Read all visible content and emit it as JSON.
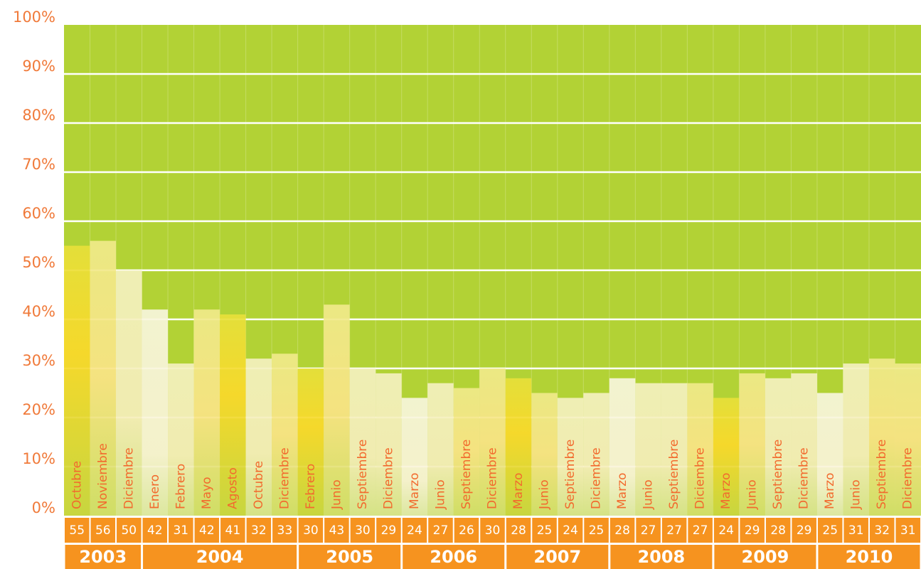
{
  "chart_data": {
    "type": "bar",
    "ylim": [
      0,
      100
    ],
    "yticks": [
      {
        "value": 0,
        "label": "0%"
      },
      {
        "value": 10,
        "label": "10%"
      },
      {
        "value": 20,
        "label": "20%"
      },
      {
        "value": 30,
        "label": "30%"
      },
      {
        "value": 40,
        "label": "40%"
      },
      {
        "value": 50,
        "label": "50%"
      },
      {
        "value": 60,
        "label": "60%"
      },
      {
        "value": 70,
        "label": "70%"
      },
      {
        "value": 80,
        "label": "80%"
      },
      {
        "value": 90,
        "label": "90%"
      },
      {
        "value": 100,
        "label": "100%"
      }
    ],
    "grid": true,
    "groups": [
      {
        "name": "2003",
        "categories": [
          "Octubre",
          "Noviembre",
          "Diciembre"
        ],
        "values": [
          55,
          56,
          50
        ]
      },
      {
        "name": "2004",
        "categories": [
          "Enero",
          "Febrero",
          "Mayo",
          "Agosto",
          "Octubre",
          "Diciembre"
        ],
        "values": [
          42,
          31,
          42,
          41,
          32,
          33
        ]
      },
      {
        "name": "2005",
        "categories": [
          "Febrero",
          "Junio",
          "Septiembre",
          "Diciembre"
        ],
        "values": [
          30,
          43,
          30,
          29
        ]
      },
      {
        "name": "2006",
        "categories": [
          "Marzo",
          "Junio",
          "Septiembre",
          "Diciembre"
        ],
        "values": [
          24,
          27,
          26,
          30
        ]
      },
      {
        "name": "2007",
        "categories": [
          "Marzo",
          "Junio",
          "Septiembre",
          "Diciembre"
        ],
        "values": [
          28,
          25,
          24,
          25
        ]
      },
      {
        "name": "2008",
        "categories": [
          "Marzo",
          "Junio",
          "Septiembre",
          "Diciembre"
        ],
        "values": [
          28,
          27,
          27,
          27
        ]
      },
      {
        "name": "2009",
        "categories": [
          "Marzo",
          "Junio",
          "Septiembre",
          "Diciembre"
        ],
        "values": [
          24,
          29,
          28,
          29
        ]
      },
      {
        "name": "2010",
        "categories": [
          "Marzo",
          "Junio",
          "Septiembre",
          "Diciembre"
        ],
        "values": [
          25,
          31,
          32,
          31
        ]
      }
    ]
  }
}
